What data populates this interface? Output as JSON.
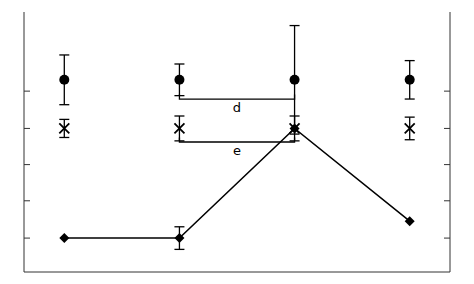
{
  "chart_data": {
    "type": "errorbar",
    "x": [
      0,
      1,
      2,
      3
    ],
    "series": [
      {
        "values": [
          0.75,
          0.75,
          0.75,
          0.75
        ],
        "errors": [
          0.22,
          0.14,
          0.48,
          0.17
        ],
        "marker": "circle",
        "line_style": "none",
        "color": "black"
      },
      {
        "values": [
          0.32,
          0.32,
          0.32,
          0.32
        ],
        "errors": [
          0.08,
          0.11,
          0.11,
          0.1
        ],
        "marker": "x",
        "line_style": "none",
        "color": "black"
      },
      {
        "values": [
          -0.65,
          -0.65,
          0.32,
          -0.5
        ],
        "errors": [
          0.0,
          0.1,
          0.0,
          0.0
        ],
        "marker": "diamond",
        "line_style": "solid",
        "color": "black"
      }
    ],
    "annotations": [
      {
        "text": "d",
        "x_start": 1,
        "x_end": 2,
        "y": 0.58,
        "tick_height": 0.04,
        "label_x": 1.5,
        "label_y": 0.55
      },
      {
        "text": "e",
        "x_start": 1,
        "x_end": 2,
        "y": 0.2,
        "tick_height": 0.04,
        "label_x": 1.5,
        "label_y": 0.17
      }
    ],
    "xlim": [
      -0.35,
      3.35
    ],
    "xticks": [],
    "ylim": [
      -0.95,
      1.35
    ],
    "yticks": [
      -0.65,
      -0.32,
      0.0,
      0.32,
      0.65
    ],
    "tick_labels": false,
    "grid": false
  }
}
